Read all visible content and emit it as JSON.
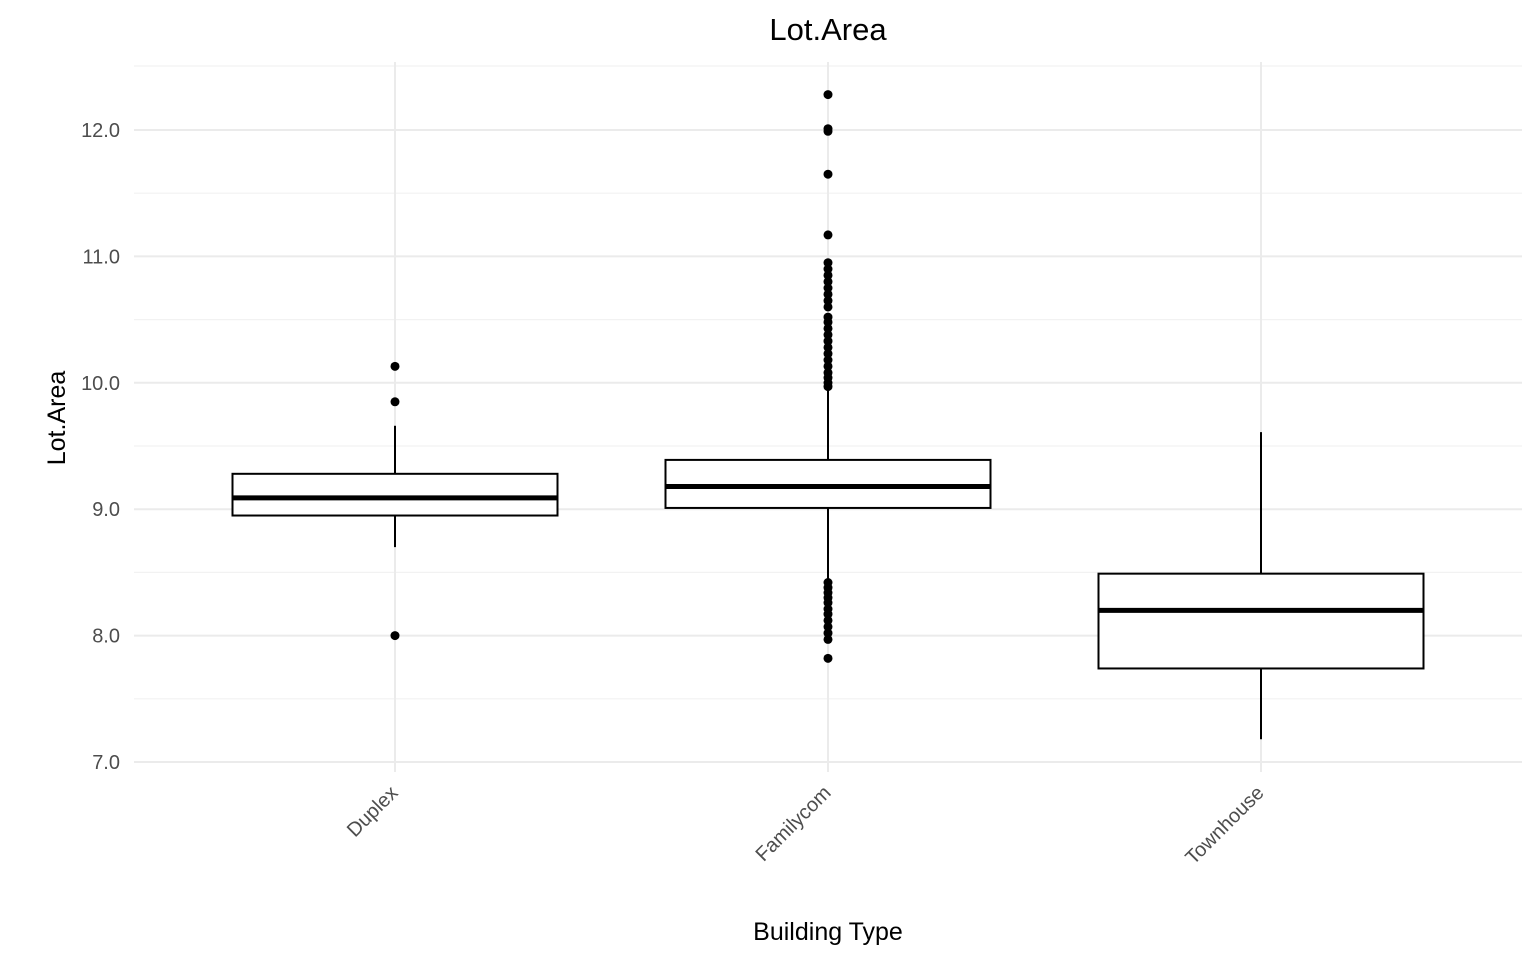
{
  "chart_data": {
    "type": "boxplot",
    "title": "Lot.Area",
    "xlabel": "Building Type",
    "ylabel": "Lot.Area",
    "ylim": [
      6.95,
      12.5
    ],
    "yticks": [
      7.0,
      8.0,
      9.0,
      10.0,
      11.0,
      12.0
    ],
    "ytick_labels": [
      "7.0",
      "8.0",
      "9.0",
      "10.0",
      "11.0",
      "12.0"
    ],
    "grid": true,
    "legend": "none",
    "categories": [
      "Duplex",
      "Familycom",
      "Townhouse"
    ],
    "boxes": [
      {
        "category": "Duplex",
        "whisker_low": 8.7,
        "q1": 8.95,
        "median": 9.09,
        "q3": 9.28,
        "whisker_high": 9.66,
        "outliers": [
          8.0,
          9.85,
          10.13
        ]
      },
      {
        "category": "Familycom",
        "whisker_low": 8.45,
        "q1": 9.01,
        "median": 9.18,
        "q3": 9.39,
        "whisker_high": 9.95,
        "outliers": [
          7.82,
          7.97,
          8.02,
          8.07,
          8.12,
          8.17,
          8.21,
          8.26,
          8.3,
          8.34,
          8.38,
          8.42,
          9.97,
          10.0,
          10.04,
          10.08,
          10.13,
          10.18,
          10.23,
          10.28,
          10.33,
          10.38,
          10.43,
          10.48,
          10.52,
          10.6,
          10.65,
          10.7,
          10.75,
          10.8,
          10.85,
          10.9,
          10.95,
          11.17,
          11.65,
          11.99,
          12.01,
          12.28
        ]
      },
      {
        "category": "Townhouse",
        "whisker_low": 7.18,
        "q1": 7.74,
        "median": 8.2,
        "q3": 8.49,
        "whisker_high": 9.61,
        "outliers": []
      }
    ]
  }
}
